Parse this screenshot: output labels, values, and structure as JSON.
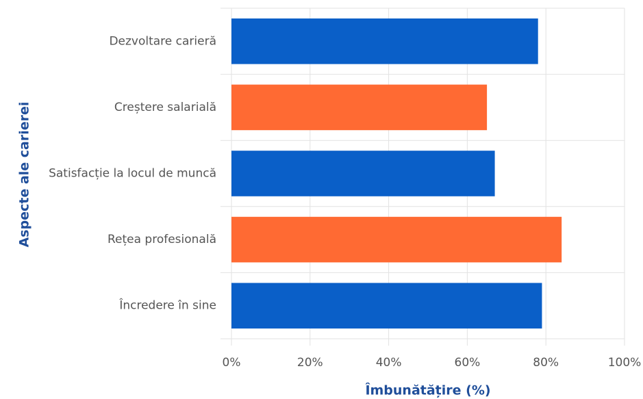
{
  "chart_data": {
    "type": "barh",
    "categories": [
      "Dezvoltare carieră",
      "Creștere salarială",
      "Satisfacție la locul de muncă",
      "Rețea profesională",
      "Încredere în sine"
    ],
    "values": [
      78,
      65,
      67,
      84,
      79
    ],
    "colors": [
      "#0a5fc8",
      "#ff6a33",
      "#0a5fc8",
      "#ff6a33",
      "#0a5fc8"
    ],
    "xlabel": "Îmbunătățire (%)",
    "ylabel": "Aspecte ale carierei",
    "xlim": [
      0,
      100
    ],
    "xticks": [
      {
        "value": 0,
        "label": "0%"
      },
      {
        "value": 20,
        "label": "20%"
      },
      {
        "value": 40,
        "label": "40%"
      },
      {
        "value": 60,
        "label": "60%"
      },
      {
        "value": 80,
        "label": "80%"
      },
      {
        "value": 100,
        "label": "100%"
      }
    ],
    "grid": true
  }
}
